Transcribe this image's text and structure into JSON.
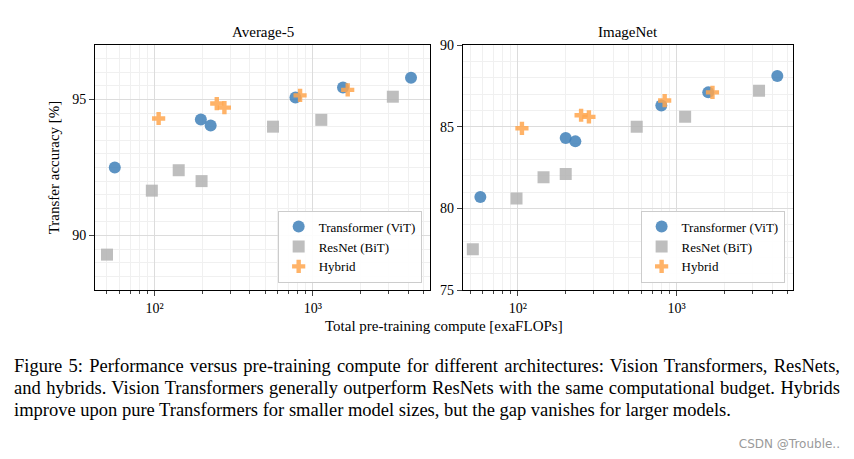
{
  "chart_data": [
    {
      "type": "scatter",
      "title": "Average-5",
      "ylabel": "Transfer accuracy [%]",
      "log": "x",
      "grid": true,
      "legend": "lower right",
      "xlim": [
        42,
        5500
      ],
      "xticks": [
        {
          "value": 100,
          "label": "10²"
        },
        {
          "value": 1000,
          "label": "10³"
        }
      ],
      "ylim": [
        88,
        97
      ],
      "yticks": [
        90,
        95
      ],
      "series": [
        {
          "name": "Transformer (ViT)",
          "color": "#3f80b8",
          "marker": "circle",
          "x": [
            56,
            196,
            226,
            776,
            1550,
            4170
          ],
          "values": [
            92.5,
            94.26,
            94.04,
            95.07,
            95.44,
            95.8
          ]
        },
        {
          "name": "ResNet (BiT)",
          "color": "#b3b3b3",
          "marker": "square",
          "x": [
            50,
            96,
            142,
            198,
            560,
            1130,
            3200
          ],
          "values": [
            89.3,
            91.65,
            92.4,
            92.0,
            94.0,
            94.25,
            95.1
          ]
        },
        {
          "name": "Hybrid",
          "color": "#ffa64d",
          "marker": "cross",
          "x": [
            106,
            247,
            276,
            830,
            1660
          ],
          "values": [
            94.3,
            94.85,
            94.7,
            95.15,
            95.35
          ]
        }
      ]
    },
    {
      "type": "scatter",
      "title": "ImageNet",
      "log": "x",
      "grid": true,
      "legend": "lower right",
      "xlim": [
        45,
        5400
      ],
      "xticks": [
        {
          "value": 100,
          "label": "10²"
        },
        {
          "value": 1000,
          "label": "10³"
        }
      ],
      "ylim": [
        75,
        90
      ],
      "yticks": [
        75,
        80,
        85,
        90
      ],
      "series": [
        {
          "name": "Transformer (ViT)",
          "color": "#3f80b8",
          "marker": "circle",
          "x": [
            58,
            200,
            230,
            800,
            1580,
            4300
          ],
          "values": [
            80.7,
            84.3,
            84.1,
            86.3,
            87.1,
            88.1
          ]
        },
        {
          "name": "ResNet (BiT)",
          "color": "#b3b3b3",
          "marker": "square",
          "x": [
            52,
            98,
            145,
            200,
            560,
            1130,
            3300
          ],
          "values": [
            77.5,
            80.6,
            81.9,
            82.1,
            85.0,
            85.6,
            87.2
          ]
        },
        {
          "name": "Hybrid",
          "color": "#ffa64d",
          "marker": "cross",
          "x": [
            106,
            250,
            280,
            840,
            1680
          ],
          "values": [
            84.9,
            85.7,
            85.6,
            86.6,
            87.1
          ]
        }
      ]
    }
  ],
  "xlabel": "Total pre-training compute [exaFLOPs]",
  "caption": "Figure 5: Performance versus pre-training compute for different architectures: Vision Transformers, ResNets, and hybrids. Vision Transformers generally outperform ResNets with the same computational budget. Hybrids improve upon pure Transformers for smaller model sizes, but the gap vanishes for larger models.",
  "watermark": "CSDN @Trouble.."
}
